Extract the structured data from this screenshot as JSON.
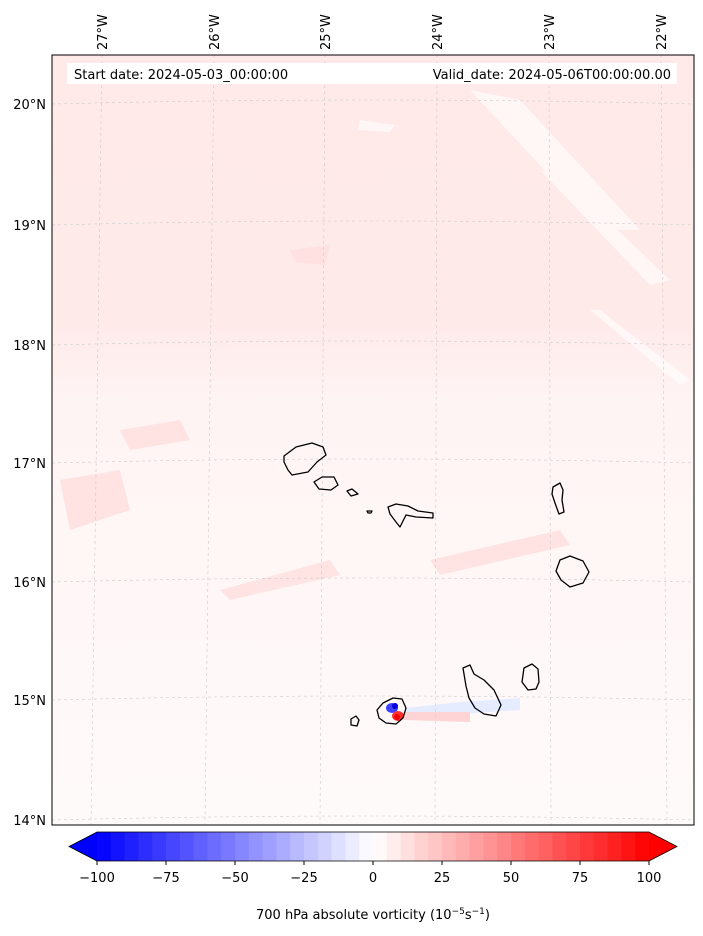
{
  "header": {
    "start_date": "Start date: 2024-05-03_00:00:00",
    "valid_date": "Valid_date: 2024-05-06T00:00:00.00"
  },
  "axes": {
    "lon_labels": [
      "27°W",
      "26°W",
      "25°W",
      "24°W",
      "23°W",
      "22°W"
    ],
    "lat_labels": [
      "20°N",
      "19°N",
      "18°N",
      "17°N",
      "16°N",
      "15°N",
      "14°N"
    ]
  },
  "colorbar": {
    "min": -100,
    "max": 100,
    "extend": "both",
    "tick_values": [
      -100,
      -75,
      -50,
      -25,
      0,
      25,
      50,
      75,
      100
    ],
    "tick_labels": [
      "−100",
      "−75",
      "−50",
      "−25",
      "0",
      "25",
      "50",
      "75",
      "100"
    ],
    "label_main": "700 hPa absolute vorticity (10",
    "label_exp1": "−5",
    "label_mid": "s",
    "label_exp2": "−1",
    "label_end": ")",
    "colors": {
      "negative": "#0000ff",
      "zero": "#ffffff",
      "positive": "#ff0000"
    }
  },
  "map": {
    "field_tint": "#ffe8e8",
    "coastline_color": "#000000",
    "gridline_color": "#cccccc"
  }
}
